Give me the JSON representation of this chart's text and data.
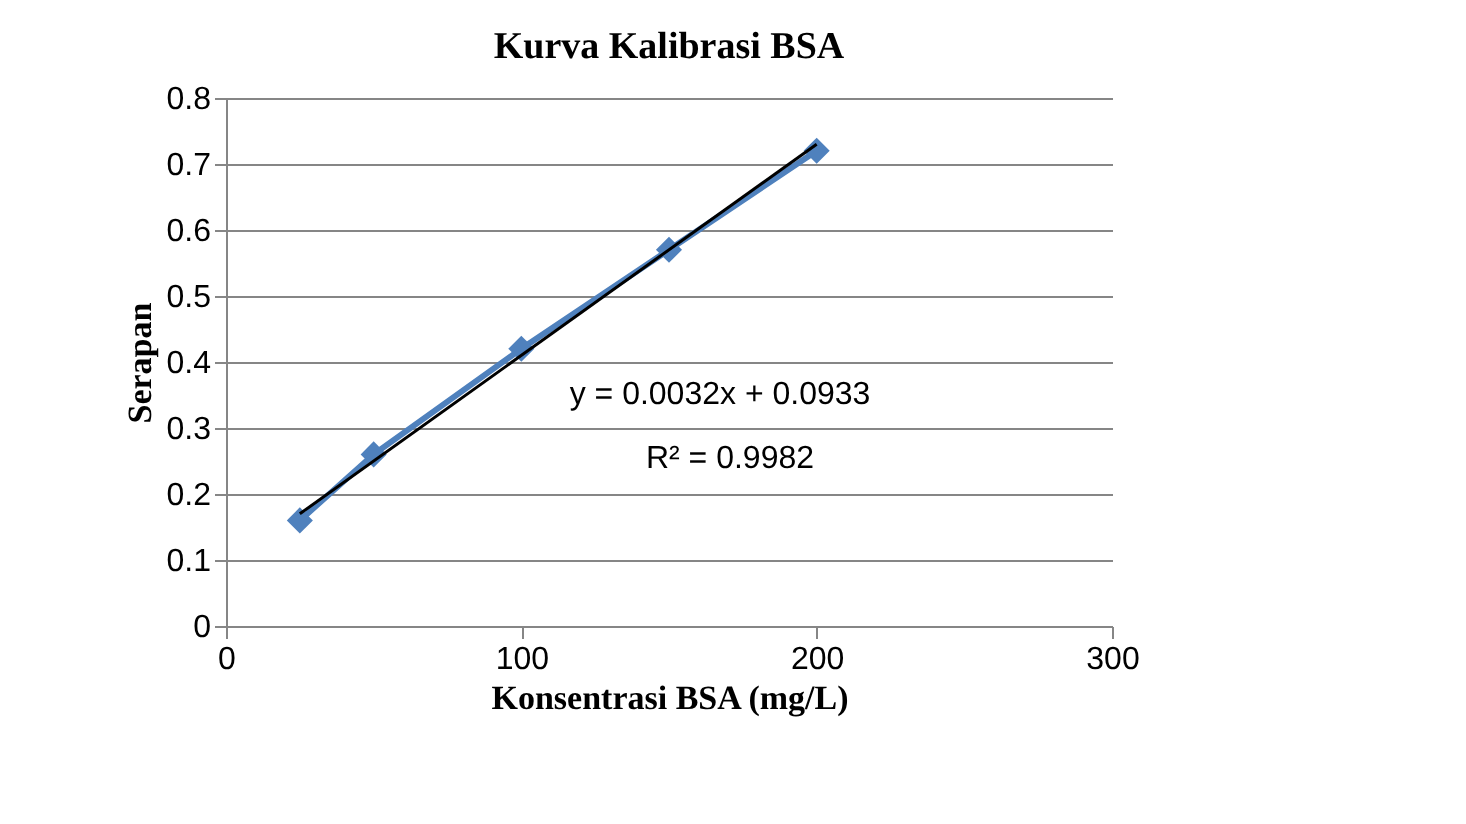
{
  "chart_data": {
    "type": "line",
    "title": "Kurva Kalibrasi BSA",
    "xlabel": "Konsentrasi BSA (mg/L)",
    "ylabel": "Serapan",
    "x": [
      25,
      50,
      100,
      150,
      200
    ],
    "series": [
      {
        "color": "#4f81bd",
        "values": [
          0.16,
          0.26,
          0.42,
          0.57,
          0.72
        ],
        "marker": "diamond",
        "line_style": "solid"
      },
      {
        "type": "line",
        "color": "#000000",
        "x": [
          25,
          200
        ],
        "values": [
          0.17,
          0.73
        ],
        "marker": "none",
        "line_style": "solid"
      }
    ],
    "xlim": [
      0,
      300
    ],
    "xticks": [
      0,
      100,
      200,
      300
    ],
    "ylim": [
      0,
      0.8
    ],
    "yticks": [
      0,
      0.1,
      0.2,
      0.3,
      0.4,
      0.5,
      0.6,
      0.7,
      0.8
    ],
    "grid": "y",
    "annotations": [
      "y = 0.0032x + 0.0933",
      "R² = 0.9982"
    ]
  }
}
